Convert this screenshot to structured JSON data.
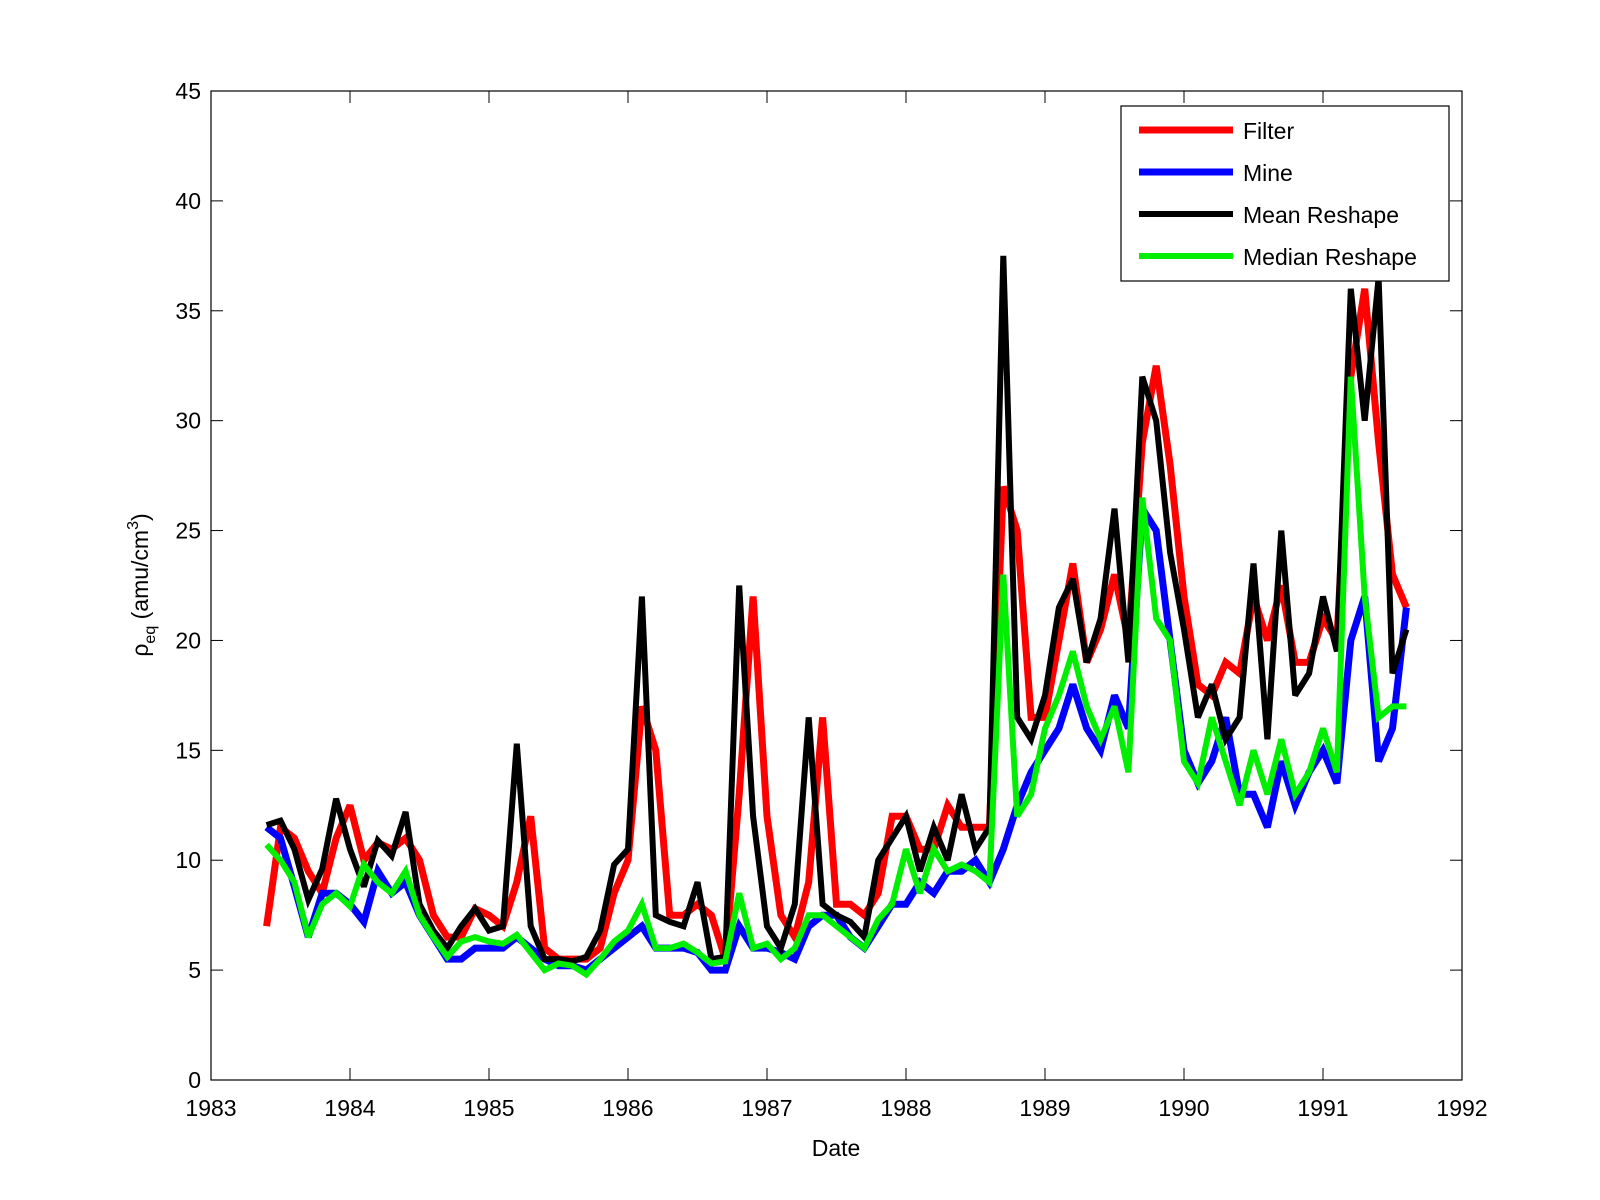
{
  "chart_data": {
    "type": "line",
    "xlabel": "Date",
    "ylabel_parts": [
      "ρ",
      "eq",
      " (amu/cm",
      "3",
      ")"
    ],
    "xlim": [
      1983,
      1992
    ],
    "xticks": [
      1983,
      1984,
      1985,
      1986,
      1987,
      1988,
      1989,
      1990,
      1991,
      1992
    ],
    "ylim": [
      0,
      45
    ],
    "yticks": [
      0,
      5,
      10,
      15,
      20,
      25,
      30,
      35,
      40,
      45
    ],
    "grid": false,
    "legend": "upper right",
    "x": [
      1983.4,
      1983.5,
      1983.6,
      1983.7,
      1983.8,
      1983.9,
      1984.0,
      1984.1,
      1984.2,
      1984.3,
      1984.4,
      1984.5,
      1984.6,
      1984.7,
      1984.8,
      1984.9,
      1985.0,
      1985.1,
      1985.2,
      1985.3,
      1985.4,
      1985.5,
      1985.6,
      1985.7,
      1985.8,
      1985.9,
      1986.0,
      1986.1,
      1986.2,
      1986.3,
      1986.4,
      1986.5,
      1986.6,
      1986.7,
      1986.8,
      1986.9,
      1987.0,
      1987.1,
      1987.2,
      1987.3,
      1987.4,
      1987.5,
      1987.6,
      1987.7,
      1987.8,
      1987.9,
      1988.0,
      1988.1,
      1988.2,
      1988.3,
      1988.4,
      1988.5,
      1988.6,
      1988.7,
      1988.8,
      1988.9,
      1989.0,
      1989.1,
      1989.2,
      1989.3,
      1989.4,
      1989.5,
      1989.6,
      1989.7,
      1989.8,
      1989.9,
      1990.0,
      1990.1,
      1990.2,
      1990.3,
      1990.4,
      1990.5,
      1990.6,
      1990.7,
      1990.8,
      1990.9,
      1991.0,
      1991.1,
      1991.2,
      1991.3,
      1991.4,
      1991.5,
      1991.6
    ],
    "series": [
      {
        "name": "Filter",
        "color": "#ff0000",
        "width": 7,
        "values": [
          7.0,
          11.5,
          11.0,
          9.5,
          8.5,
          11.0,
          12.5,
          10.0,
          10.8,
          10.5,
          11.0,
          10.0,
          7.5,
          6.5,
          6.5,
          7.8,
          7.5,
          7.0,
          9.0,
          12.0,
          6.0,
          5.5,
          5.5,
          5.5,
          6.0,
          8.5,
          10.0,
          17.0,
          15.0,
          7.5,
          7.5,
          8.0,
          7.5,
          5.5,
          13.0,
          22.0,
          12.0,
          7.5,
          6.5,
          9.0,
          16.5,
          8.0,
          8.0,
          7.5,
          8.5,
          12.0,
          12.0,
          10.5,
          10.5,
          12.5,
          11.5,
          11.5,
          11.5,
          27.0,
          25.0,
          16.5,
          16.5,
          20.0,
          23.5,
          19.0,
          20.5,
          23.0,
          20.0,
          29.0,
          32.5,
          28.0,
          22.0,
          18.0,
          17.5,
          19.0,
          18.5,
          22.0,
          20.0,
          22.5,
          19.0,
          19.0,
          21.0,
          20.0,
          32.0,
          36.0,
          29.0,
          23.0,
          21.5
        ]
      },
      {
        "name": "Mine",
        "color": "#0000ff",
        "width": 7,
        "values": [
          11.5,
          11.0,
          8.8,
          6.5,
          8.5,
          8.5,
          8.0,
          7.2,
          9.5,
          8.5,
          9.0,
          7.5,
          6.5,
          5.5,
          5.5,
          6.0,
          6.0,
          6.0,
          6.5,
          6.0,
          5.5,
          5.2,
          5.2,
          5.0,
          5.5,
          6.0,
          6.5,
          7.0,
          6.0,
          6.0,
          6.0,
          5.8,
          5.0,
          5.0,
          7.0,
          6.0,
          6.0,
          5.8,
          5.5,
          7.0,
          7.5,
          7.5,
          6.5,
          6.0,
          7.0,
          8.0,
          8.0,
          9.0,
          8.5,
          9.5,
          9.5,
          10.0,
          9.0,
          10.5,
          12.5,
          14.0,
          15.0,
          16.0,
          18.0,
          16.0,
          15.0,
          17.5,
          16.0,
          26.0,
          25.0,
          20.0,
          15.0,
          13.5,
          14.5,
          16.5,
          13.0,
          13.0,
          11.5,
          14.5,
          12.5,
          14.0,
          15.0,
          13.5,
          20.0,
          22.0,
          14.5,
          16.0,
          21.5
        ]
      },
      {
        "name": "Mean Reshape",
        "color": "#000000",
        "width": 6,
        "values": [
          11.6,
          11.8,
          10.5,
          8.2,
          9.6,
          12.8,
          10.5,
          8.8,
          10.9,
          10.2,
          12.2,
          8.0,
          6.8,
          6.0,
          7.0,
          7.8,
          6.8,
          7.0,
          15.3,
          7.0,
          5.5,
          5.5,
          5.4,
          5.6,
          6.8,
          9.8,
          10.5,
          22.0,
          7.5,
          7.2,
          7.0,
          9.0,
          5.5,
          5.6,
          22.5,
          12.0,
          7.0,
          6.0,
          8.0,
          16.5,
          8.0,
          7.5,
          7.2,
          6.5,
          10.0,
          11.0,
          12.0,
          9.5,
          11.5,
          10.0,
          13.0,
          10.5,
          11.5,
          37.5,
          16.5,
          15.5,
          17.5,
          21.5,
          22.8,
          19.0,
          21.0,
          26.0,
          19.0,
          32.0,
          30.0,
          24.0,
          20.5,
          16.5,
          18.0,
          15.5,
          16.5,
          23.5,
          15.5,
          25.0,
          17.5,
          18.5,
          22.0,
          19.5,
          36.0,
          30.0,
          36.5,
          18.5,
          20.5
        ]
      },
      {
        "name": "Median Reshape",
        "color": "#00ee00",
        "width": 6,
        "values": [
          10.7,
          10.0,
          9.0,
          6.5,
          8.0,
          8.5,
          7.9,
          9.8,
          9.0,
          8.5,
          9.5,
          7.5,
          6.5,
          5.6,
          6.3,
          6.5,
          6.3,
          6.2,
          6.6,
          5.8,
          5.0,
          5.3,
          5.2,
          4.8,
          5.5,
          6.3,
          6.8,
          8.0,
          6.0,
          6.0,
          6.2,
          5.8,
          5.3,
          5.4,
          8.5,
          6.0,
          6.2,
          5.5,
          6.0,
          7.5,
          7.5,
          7.0,
          6.5,
          6.0,
          7.3,
          8.0,
          10.5,
          8.5,
          10.5,
          9.5,
          9.8,
          9.5,
          9.0,
          23.0,
          12.0,
          13.0,
          16.0,
          17.5,
          19.5,
          17.0,
          15.5,
          17.0,
          14.0,
          26.5,
          21.0,
          20.0,
          14.5,
          13.5,
          16.5,
          14.5,
          12.5,
          15.0,
          13.0,
          15.5,
          13.0,
          14.0,
          16.0,
          14.0,
          32.0,
          22.0,
          16.5,
          17.0,
          17.0
        ]
      }
    ]
  }
}
